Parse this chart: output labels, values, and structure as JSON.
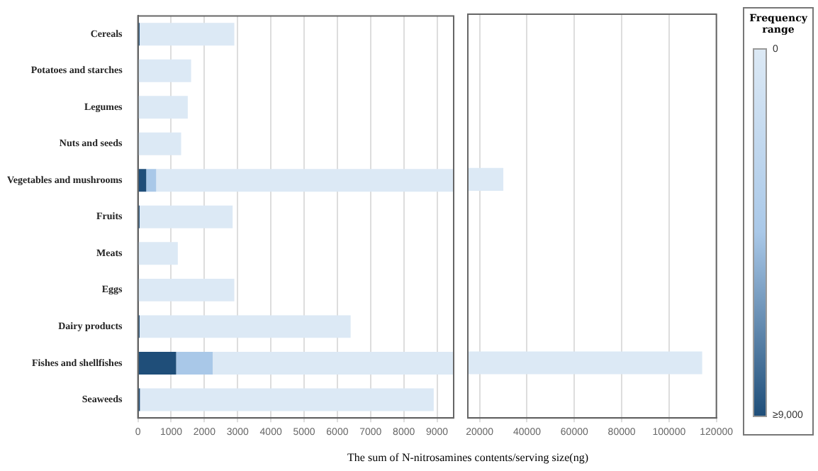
{
  "chart_data": [
    {
      "type": "bar",
      "orientation": "horizontal",
      "stacked": true,
      "xlabel": "The sum of N-nitrosamines contents/serving size(ng)",
      "clabel": "Frequency range",
      "clim": [
        0,
        9000
      ],
      "cticks": [
        0,
        {
          "value": 9000,
          "label": "≥9,000"
        }
      ],
      "categories": [
        "Cereals",
        "Potatoes and starches",
        "Legumes",
        "Nuts and seeds",
        "Vegetables and mushrooms",
        "Fruits",
        "Meats",
        "Eggs",
        "Dairy products",
        "Fishes and shellfishes",
        "Seaweeds"
      ],
      "series": [
        {
          "color": "#1f4e79",
          "values": [
            50,
            null,
            null,
            null,
            250,
            50,
            null,
            null,
            50,
            1150,
            60
          ]
        },
        {
          "color": "#a9c8e8",
          "values": [
            0,
            0,
            0,
            0,
            300,
            0,
            0,
            0,
            0,
            1100,
            0
          ]
        },
        {
          "color": "#dce9f5",
          "values": [
            2850,
            1600,
            1500,
            1300,
            8950,
            2800,
            1200,
            2900,
            6350,
            7250,
            8840
          ]
        }
      ],
      "xlim": [
        0,
        9500
      ],
      "xticks": [
        0,
        1000,
        2000,
        3000,
        4000,
        5000,
        6000,
        7000,
        8000,
        9000
      ],
      "grid": "x"
    },
    {
      "type": "bar",
      "orientation": "horizontal",
      "tick_labels": "x",
      "categories": [
        null,
        null,
        null,
        null,
        null,
        null,
        null,
        null,
        null,
        null,
        null
      ],
      "series": [
        {
          "color": "#dce9f5",
          "values": [
            null,
            null,
            null,
            null,
            30000,
            null,
            null,
            null,
            null,
            114000,
            null
          ]
        }
      ],
      "xlim": [
        15000,
        120000
      ],
      "xticks": [
        20000,
        40000,
        60000,
        80000,
        100000,
        120000
      ],
      "grid": "x"
    }
  ]
}
